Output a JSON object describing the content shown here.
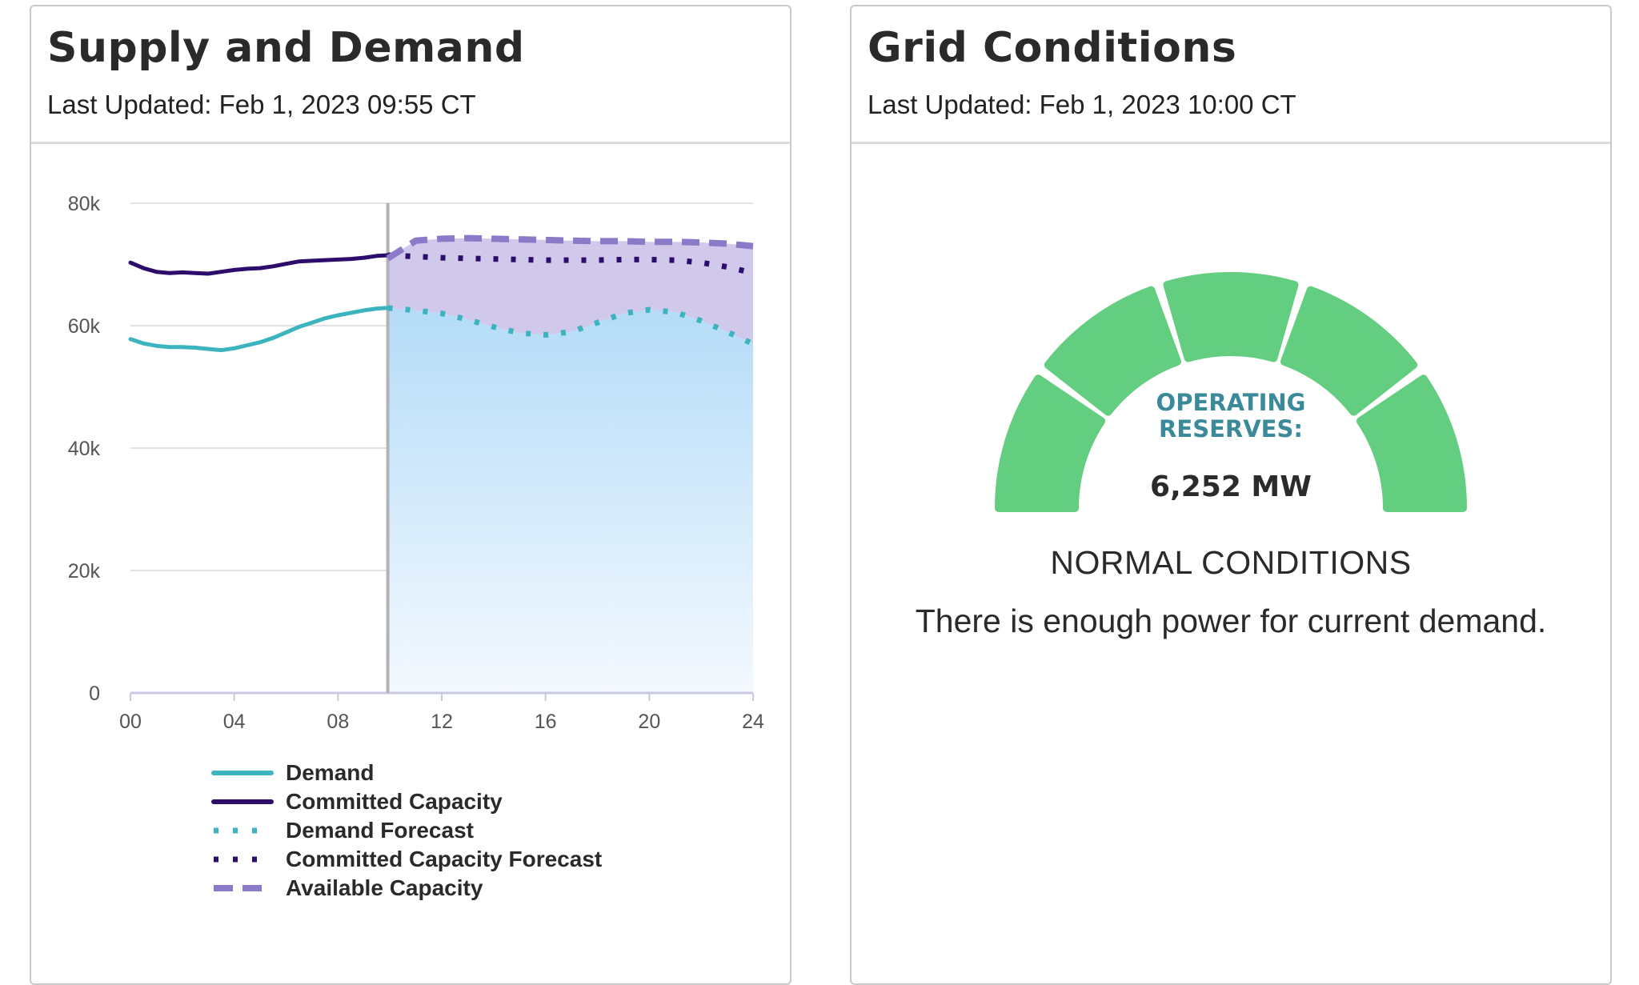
{
  "supply_demand": {
    "title": "Supply and Demand",
    "last_updated": "Last Updated: Feb 1, 2023 09:55 CT"
  },
  "grid_conditions": {
    "title": "Grid Conditions",
    "last_updated": "Last Updated: Feb 1, 2023 10:00 CT",
    "reserves_label_line1": "OPERATING",
    "reserves_label_line2": "RESERVES:",
    "reserves_value": "6,252 MW",
    "status": "NORMAL CONDITIONS",
    "status_description": "There is enough power for current demand.",
    "gauge_color": "#63cd80",
    "gauge_segments": 5
  },
  "chart_data": {
    "type": "line",
    "xlabel": "",
    "ylabel": "",
    "xlim": [
      0,
      24
    ],
    "ylim": [
      0,
      80000
    ],
    "x_ticks": [
      0,
      4,
      8,
      12,
      16,
      20,
      24
    ],
    "x_tick_labels": [
      "00",
      "04",
      "08",
      "12",
      "16",
      "20",
      "24"
    ],
    "y_ticks": [
      0,
      20000,
      40000,
      60000,
      80000
    ],
    "y_tick_labels": [
      "0",
      "20k",
      "40k",
      "60k",
      "80k"
    ],
    "grid": true,
    "legend_position": "bottom",
    "current_time": 9.92,
    "series": [
      {
        "name": "Demand",
        "style": "solid",
        "color": "#3cb4bf",
        "x": [
          0,
          0.5,
          1,
          1.5,
          2,
          2.5,
          3,
          3.5,
          4,
          4.5,
          5,
          5.5,
          6,
          6.5,
          7,
          7.5,
          8,
          8.5,
          9,
          9.5,
          9.92
        ],
        "y": [
          57800,
          57100,
          56700,
          56500,
          56500,
          56400,
          56200,
          56000,
          56300,
          56800,
          57300,
          58000,
          58900,
          59800,
          60500,
          61200,
          61700,
          62100,
          62500,
          62800,
          62900
        ]
      },
      {
        "name": "Committed Capacity",
        "style": "solid",
        "color": "#2d0d6b",
        "x": [
          0,
          0.5,
          1,
          1.5,
          2,
          2.5,
          3,
          3.5,
          4,
          4.5,
          5,
          5.5,
          6,
          6.5,
          7,
          7.5,
          8,
          8.5,
          9,
          9.5,
          9.92
        ],
        "y": [
          70300,
          69400,
          68800,
          68600,
          68700,
          68600,
          68500,
          68800,
          69100,
          69300,
          69400,
          69700,
          70100,
          70500,
          70600,
          70700,
          70800,
          70900,
          71100,
          71400,
          71500
        ]
      },
      {
        "name": "Demand Forecast",
        "style": "dotted",
        "color": "#3cb4bf",
        "x": [
          9.92,
          11,
          12,
          13,
          14,
          15,
          16,
          17,
          18,
          19,
          20,
          21,
          22,
          23,
          24
        ],
        "y": [
          62900,
          62500,
          62000,
          61000,
          59800,
          58800,
          58500,
          59000,
          60500,
          62000,
          62600,
          62200,
          60800,
          59000,
          57000
        ]
      },
      {
        "name": "Committed Capacity Forecast",
        "style": "dotted",
        "color": "#2d0d6b",
        "x": [
          9.92,
          11,
          12,
          13,
          14,
          15,
          16,
          17,
          18,
          19,
          20,
          21,
          22,
          23,
          24
        ],
        "y": [
          71500,
          71300,
          71100,
          71000,
          70900,
          70800,
          70700,
          70700,
          70700,
          70800,
          70800,
          70700,
          70300,
          69600,
          68600
        ]
      },
      {
        "name": "Available Capacity",
        "style": "dashed",
        "color": "#8a7ac8",
        "x": [
          9.92,
          11,
          12,
          13,
          14,
          15,
          16,
          17,
          18,
          19,
          20,
          21,
          22,
          23,
          24
        ],
        "y": [
          71000,
          73900,
          74200,
          74300,
          74200,
          74100,
          74000,
          73900,
          73800,
          73800,
          73700,
          73700,
          73600,
          73400,
          73000
        ]
      }
    ]
  }
}
